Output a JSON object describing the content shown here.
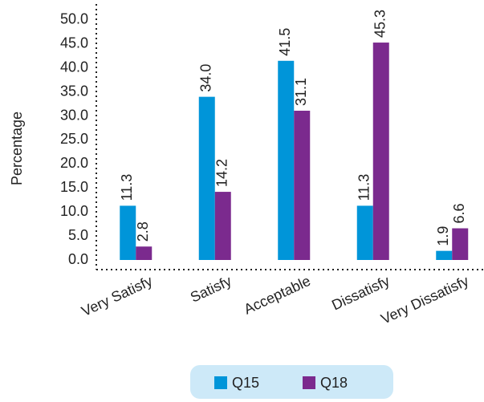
{
  "chart_data": {
    "type": "bar",
    "y_label": "Percentage",
    "categories": [
      "Very Satisfy",
      "Satisfy",
      "Acceptable",
      "Dissatisfy",
      "Very Dissatisfy"
    ],
    "series": [
      {
        "name": "Q15",
        "color": "#0095d9",
        "values": [
          11.3,
          34.0,
          41.5,
          11.3,
          1.9
        ],
        "value_labels": [
          "11.3",
          "34.0",
          "41.5",
          "11.3",
          "1.9"
        ]
      },
      {
        "name": "Q18",
        "color": "#7b2a8e",
        "values": [
          2.8,
          14.2,
          31.1,
          45.3,
          6.6
        ],
        "value_labels": [
          "2.8",
          "14.2",
          "31.1",
          "45.3",
          "6.6"
        ]
      }
    ],
    "ylim": [
      0,
      53
    ],
    "yticks": [
      {
        "value": 0,
        "label": "0.0"
      },
      {
        "value": 5,
        "label": "5.0"
      },
      {
        "value": 10,
        "label": "10.0"
      },
      {
        "value": 15,
        "label": "15.0"
      },
      {
        "value": 20,
        "label": "20.0"
      },
      {
        "value": 25,
        "label": "25.0"
      },
      {
        "value": 30,
        "label": "30.0"
      },
      {
        "value": 35,
        "label": "35.0"
      },
      {
        "value": 40,
        "label": "40.0"
      },
      {
        "value": 45,
        "label": "45.0"
      },
      {
        "value": 50,
        "label": "50.0"
      }
    ],
    "legend": "bottom"
  }
}
